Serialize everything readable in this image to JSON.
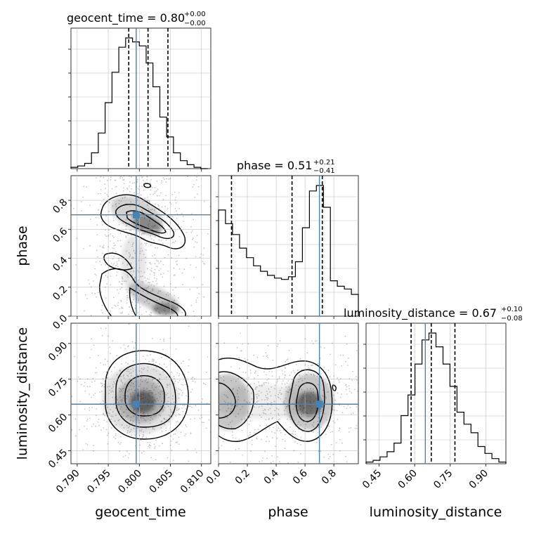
{
  "chart_data": {
    "type": "corner",
    "parameters": [
      "geocent_time",
      "phase",
      "luminosity_distance"
    ],
    "colors": {
      "truth": "#4682b4",
      "hist": "#000000",
      "grid": "#bfbfbf",
      "density": "#000000"
    },
    "titles": [
      {
        "param": "geocent_time",
        "text": "geocent_time = 0.80",
        "sup": "+0.00",
        "sub": "−0.00"
      },
      {
        "param": "phase",
        "text": "phase = 0.51",
        "sup": "+0.21",
        "sub": "−0.41"
      },
      {
        "param": "luminosity_distance",
        "text": "luminosity_distance = 0.67",
        "sup": "+0.10",
        "sub": "−0.08"
      }
    ],
    "axes": {
      "geocent_time": {
        "label": "geocent_time",
        "range": [
          0.789,
          0.8115
        ],
        "ticks": [
          0.79,
          0.795,
          0.8,
          0.805,
          0.81
        ],
        "tick_labels": [
          "0.790",
          "0.795",
          "0.800",
          "0.805",
          "0.810"
        ]
      },
      "phase": {
        "label": "phase",
        "range": [
          0.0,
          0.97
        ],
        "ticks": [
          0.0,
          0.2,
          0.4,
          0.6,
          0.8
        ],
        "tick_labels": [
          "0.0",
          "0.2",
          "0.4",
          "0.6",
          "0.8"
        ]
      },
      "luminosity_distance": {
        "label": "luminosity_distance",
        "range": [
          0.395,
          0.985
        ],
        "ticks": [
          0.45,
          0.6,
          0.75,
          0.9
        ],
        "tick_labels": [
          "0.45",
          "0.60",
          "0.75",
          "0.90"
        ]
      }
    },
    "truths": {
      "geocent_time": 0.7995,
      "phase": 0.7,
      "luminosity_distance": 0.645
    },
    "quantiles": {
      "geocent_time": [
        0.7983,
        0.8014,
        0.8046
      ],
      "phase": [
        0.09,
        0.51,
        0.72
      ],
      "luminosity_distance": [
        0.585,
        0.67,
        0.77
      ]
    },
    "histograms": {
      "geocent_time": {
        "edges": [
          0.789,
          0.7901,
          0.7912,
          0.7923,
          0.7934,
          0.7945,
          0.7956,
          0.7967,
          0.7978,
          0.7989,
          0.8,
          0.8011,
          0.8022,
          0.8033,
          0.8044,
          0.8055,
          0.8066,
          0.8077,
          0.8088,
          0.8099,
          0.811
        ],
        "counts": [
          1,
          2,
          4,
          12,
          27,
          50,
          73,
          92,
          99,
          96,
          93,
          80,
          62,
          39,
          24,
          12,
          6,
          3,
          1,
          0
        ]
      },
      "phase": {
        "edges": [
          0.0,
          0.0485,
          0.097,
          0.1455,
          0.194,
          0.2425,
          0.291,
          0.3395,
          0.388,
          0.4365,
          0.485,
          0.5335,
          0.582,
          0.6305,
          0.679,
          0.7275,
          0.776,
          0.8245,
          0.873,
          0.9215,
          0.97
        ],
        "counts": [
          78,
          68,
          60,
          50,
          43,
          37,
          33,
          30,
          28,
          27,
          29,
          40,
          65,
          92,
          96,
          80,
          26,
          22,
          20,
          16
        ]
      },
      "luminosity_distance": {
        "edges": [
          0.395,
          0.4245,
          0.454,
          0.4835,
          0.513,
          0.5425,
          0.572,
          0.6015,
          0.631,
          0.6605,
          0.69,
          0.7195,
          0.749,
          0.7785,
          0.808,
          0.8375,
          0.867,
          0.8965,
          0.926,
          0.9555,
          0.985
        ],
        "counts": [
          1,
          2,
          4,
          7,
          12,
          28,
          40,
          58,
          72,
          76,
          68,
          58,
          45,
          30,
          23,
          18,
          10,
          6,
          3,
          1
        ]
      }
    }
  }
}
